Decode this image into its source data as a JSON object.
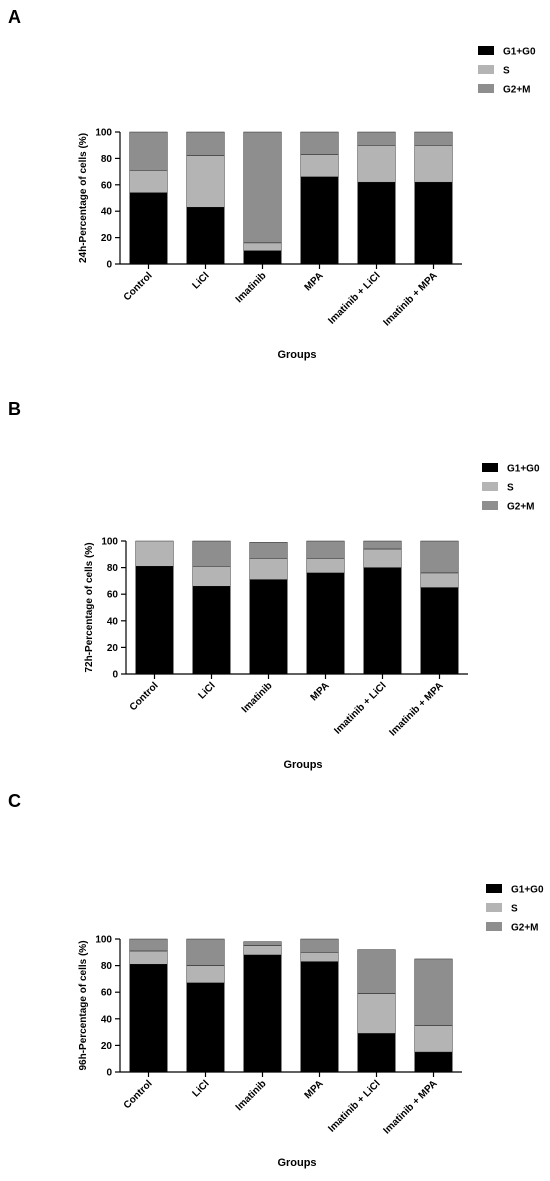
{
  "colors": {
    "G1+G0": "#000000",
    "S": "#b4b4b4",
    "G2+M": "#8e8e8e"
  },
  "chart_data": [
    {
      "type": "bar",
      "stacked": true,
      "panel_label": "A",
      "categories": [
        "Control",
        "LiCl",
        "Imatinib",
        "MPA",
        "Imatinib + LiCl",
        "Imatinib + MPA"
      ],
      "series": [
        {
          "name": "G1+G0",
          "values": [
            54,
            43,
            10,
            66,
            62,
            62
          ]
        },
        {
          "name": "S",
          "values": [
            17,
            39,
            6,
            17,
            28,
            28
          ]
        },
        {
          "name": "G2+M",
          "values": [
            29,
            18,
            84,
            17,
            10,
            10
          ]
        }
      ],
      "xlabel": "Groups",
      "ylabel": "24h-Percentage of cells (%)",
      "ylim": [
        0,
        100
      ],
      "yticks": [
        0,
        20,
        40,
        60,
        80,
        100
      ],
      "legend": "top-right"
    },
    {
      "type": "bar",
      "stacked": true,
      "panel_label": "B",
      "categories": [
        "Control",
        "LiCl",
        "Imatinib",
        "MPA",
        "Imatinib + LiCl",
        "Imatinib + MPA"
      ],
      "series": [
        {
          "name": "G1+G0",
          "values": [
            81,
            66,
            71,
            76,
            80,
            65
          ]
        },
        {
          "name": "S",
          "values": [
            19,
            15,
            16,
            11,
            14,
            11
          ]
        },
        {
          "name": "G2+M",
          "values": [
            0,
            19,
            12,
            13,
            6,
            24
          ]
        }
      ],
      "xlabel": "Groups",
      "ylabel": "72h-Percentage of cells (%)",
      "ylim": [
        0,
        100
      ],
      "yticks": [
        0,
        20,
        40,
        60,
        80,
        100
      ],
      "legend": "top-right"
    },
    {
      "type": "bar",
      "stacked": true,
      "panel_label": "C",
      "categories": [
        "Control",
        "LiCl",
        "Imatinib",
        "MPA",
        "Imatinib + LiCl",
        "Imatinib + MPA"
      ],
      "series": [
        {
          "name": "G1+G0",
          "values": [
            81,
            67,
            88,
            83,
            29,
            15
          ]
        },
        {
          "name": "S",
          "values": [
            10,
            13,
            7,
            7,
            30,
            20
          ]
        },
        {
          "name": "G2+M",
          "values": [
            9,
            20,
            3,
            10,
            33,
            50
          ]
        }
      ],
      "xlabel": "Groups",
      "ylabel": "96h-Percentage of cells (%)",
      "ylim": [
        0,
        100
      ],
      "yticks": [
        0,
        20,
        40,
        60,
        80,
        100
      ],
      "legend": "top-right"
    }
  ]
}
